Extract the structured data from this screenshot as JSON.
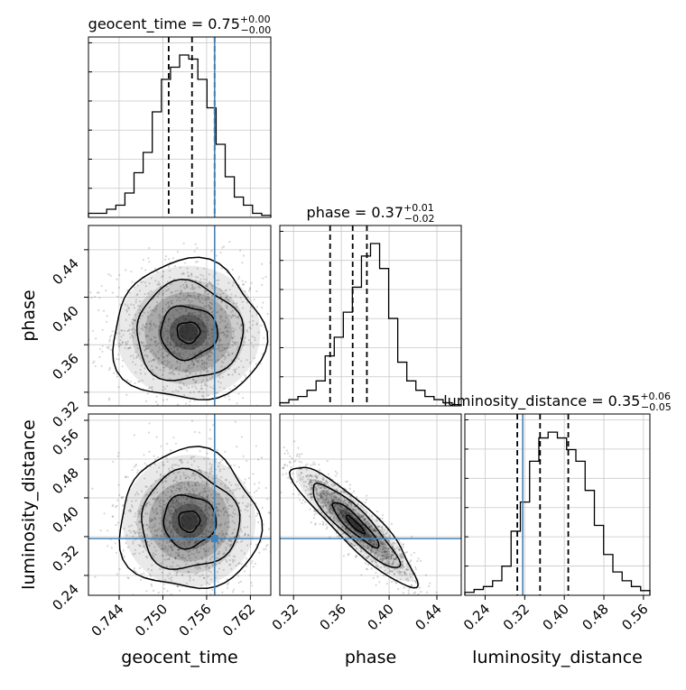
{
  "chart_data": {
    "type": "corner",
    "parameters": [
      "geocent_time",
      "phase",
      "luminosity_distance"
    ],
    "axis_labels": {
      "geocent_time": "geocent_time",
      "phase": "phase",
      "luminosity_distance": "luminosity_distance"
    },
    "ranges": {
      "geocent_time": [
        0.7398,
        0.7648
      ],
      "phase": [
        0.3085,
        0.4604
      ],
      "luminosity_distance": [
        0.199,
        0.573
      ]
    },
    "ticks": {
      "geocent_time": [
        0.744,
        0.75,
        0.756,
        0.762
      ],
      "phase": [
        0.32,
        0.36,
        0.4,
        0.44
      ],
      "luminosity_distance": [
        0.24,
        0.32,
        0.4,
        0.48,
        0.56
      ]
    },
    "tick_labels": {
      "geocent_time": [
        "0.744",
        "0.750",
        "0.756",
        "0.762"
      ],
      "phase": [
        "0.32",
        "0.36",
        "0.40",
        "0.44"
      ],
      "luminosity_distance": [
        "0.24",
        "0.32",
        "0.40",
        "0.48",
        "0.56"
      ]
    },
    "titles": {
      "geocent_time": {
        "name": "geocent_time",
        "median": "0.75",
        "plus": "+0.00",
        "minus": "−0.00"
      },
      "phase": {
        "name": "phase",
        "median": "0.37",
        "plus": "+0.01",
        "minus": "−0.02"
      },
      "luminosity_distance": {
        "name": "luminosity_distance",
        "median": "0.35",
        "plus": "+0.06",
        "minus": "−0.05"
      }
    },
    "quantiles": {
      "geocent_time": [
        0.7508,
        0.754,
        0.7571
      ],
      "phase": [
        0.3506,
        0.3695,
        0.3814
      ],
      "luminosity_distance": [
        0.305,
        0.351,
        0.408
      ]
    },
    "truths": {
      "geocent_time": 0.7571,
      "phase": null,
      "luminosity_distance": 0.316
    },
    "histograms": {
      "geocent_time": [
        1,
        1,
        2,
        3,
        6,
        11,
        16,
        26,
        34,
        37,
        40,
        39,
        34,
        27,
        18,
        10,
        5,
        3,
        1,
        0.5
      ],
      "phase": [
        0.5,
        1,
        1.5,
        2.5,
        4,
        8,
        11,
        15,
        19,
        24,
        26,
        22,
        14,
        7,
        4,
        2.5,
        1.5,
        1,
        0.5,
        0.2
      ],
      "luminosity_distance": [
        0.5,
        1,
        1.5,
        2.5,
        5,
        11,
        16,
        23,
        27,
        28,
        27,
        25,
        23,
        18,
        12,
        7,
        4,
        2.5,
        1.5,
        0.8
      ]
    },
    "joint_2d": [
      {
        "x": "geocent_time",
        "y": "phase",
        "correlation": 0.0,
        "center": [
          0.7535,
          0.3705
        ],
        "spread": [
          0.0052,
          0.0295
        ]
      },
      {
        "x": "geocent_time",
        "y": "luminosity_distance",
        "correlation": -0.05,
        "center": [
          0.7536,
          0.352
        ],
        "spread": [
          0.0048,
          0.072
        ]
      },
      {
        "x": "phase",
        "y": "luminosity_distance",
        "correlation": -0.9,
        "center": [
          0.3715,
          0.345
        ],
        "spread": [
          0.026,
          0.062
        ]
      }
    ],
    "colors": {
      "truth": "#4682b4",
      "hist": "#000000",
      "grid": "#c8c8c8"
    }
  }
}
